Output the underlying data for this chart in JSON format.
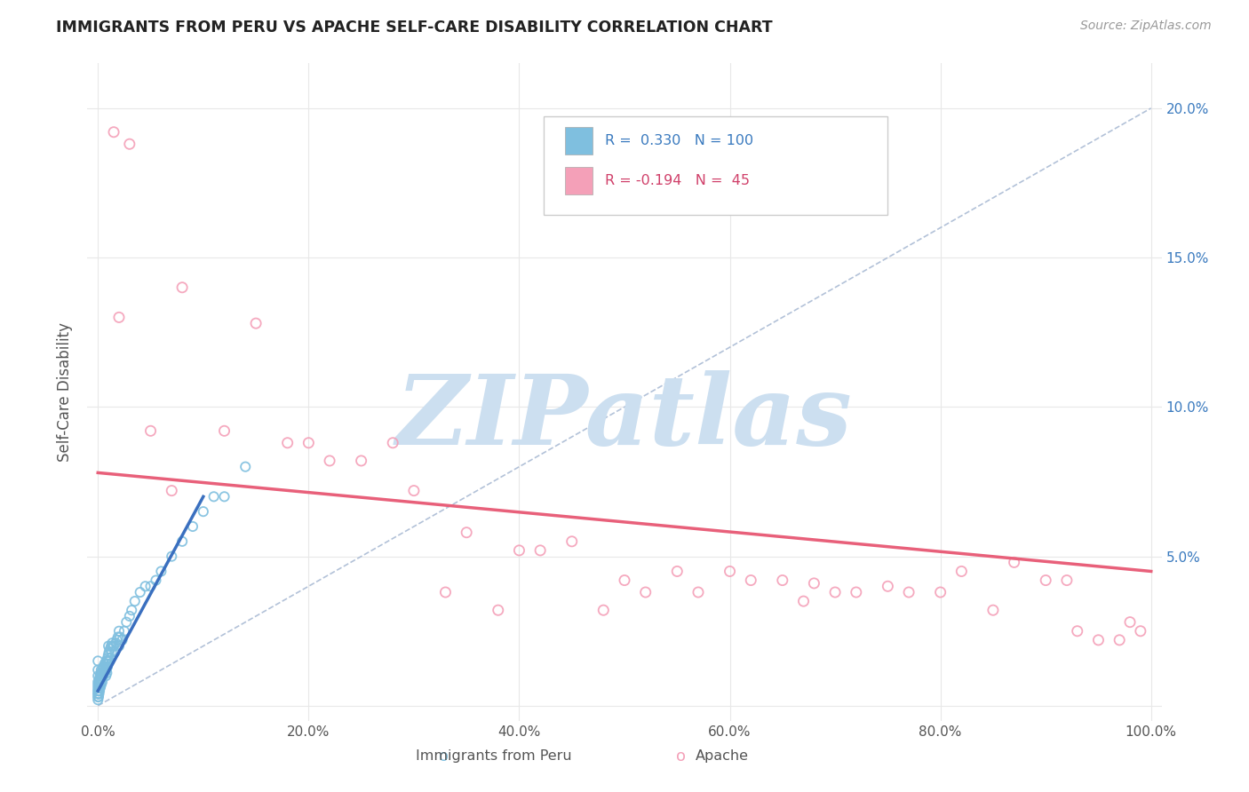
{
  "title": "IMMIGRANTS FROM PERU VS APACHE SELF-CARE DISABILITY CORRELATION CHART",
  "source": "Source: ZipAtlas.com",
  "ylabel": "Self-Care Disability",
  "legend_label1": "Immigrants from Peru",
  "legend_label2": "Apache",
  "R1": 0.33,
  "N1": 100,
  "R2": -0.194,
  "N2": 45,
  "xlim": [
    -1.0,
    101.0
  ],
  "ylim": [
    -0.5,
    21.5
  ],
  "xticks": [
    0.0,
    20.0,
    40.0,
    60.0,
    80.0,
    100.0
  ],
  "yticks": [
    0.0,
    5.0,
    10.0,
    15.0,
    20.0
  ],
  "xticklabels": [
    "0.0%",
    "20.0%",
    "40.0%",
    "60.0%",
    "80.0%",
    "100.0%"
  ],
  "yticklabels_right": [
    "",
    "5.0%",
    "10.0%",
    "15.0%",
    "20.0%"
  ],
  "color_blue": "#7fbfdf",
  "color_pink": "#f4a0b8",
  "color_trendline_blue": "#3a6fbf",
  "color_trendline_pink": "#e8607a",
  "color_ref_line": "#aabbd4",
  "watermark_color": "#ccdff0",
  "watermark_text": "ZIPatlas",
  "background_color": "#ffffff",
  "grid_color": "#e8e8e8",
  "title_color": "#222222",
  "axis_label_color": "#555555",
  "tick_color_right": "#3a7abf",
  "blue_scatter_x": [
    0.0,
    0.0,
    0.0,
    0.0,
    0.0,
    0.0,
    0.0,
    0.0,
    0.0,
    0.0,
    0.05,
    0.05,
    0.08,
    0.1,
    0.1,
    0.12,
    0.15,
    0.15,
    0.18,
    0.2,
    0.2,
    0.25,
    0.3,
    0.3,
    0.35,
    0.4,
    0.4,
    0.45,
    0.5,
    0.5,
    0.6,
    0.65,
    0.7,
    0.75,
    0.8,
    0.85,
    0.9,
    0.95,
    1.0,
    1.0,
    1.1,
    1.2,
    1.3,
    1.4,
    1.5,
    1.6,
    1.7,
    1.8,
    1.9,
    2.0,
    2.0,
    2.1,
    2.3,
    2.5,
    2.7,
    3.0,
    3.2,
    3.5,
    4.0,
    4.5,
    5.0,
    5.5,
    6.0,
    7.0,
    8.0,
    9.0,
    10.0,
    11.0,
    12.0,
    14.0,
    0.02,
    0.03,
    0.04,
    0.06,
    0.07,
    0.09,
    0.11,
    0.13,
    0.16,
    0.19,
    0.22,
    0.26,
    0.28,
    0.32,
    0.38,
    0.42,
    0.48,
    0.55,
    0.62,
    0.68,
    0.72,
    0.78,
    0.82,
    0.88,
    0.92,
    0.98,
    1.05,
    1.15,
    1.25,
    1.35
  ],
  "blue_scatter_y": [
    0.2,
    0.3,
    0.4,
    0.5,
    0.6,
    0.7,
    0.8,
    1.0,
    1.2,
    1.5,
    0.3,
    0.5,
    0.7,
    0.4,
    0.8,
    0.6,
    0.5,
    0.9,
    0.7,
    0.6,
    1.0,
    0.8,
    0.7,
    1.2,
    0.9,
    0.8,
    1.1,
    1.0,
    1.0,
    1.3,
    1.1,
    1.2,
    1.3,
    1.0,
    1.2,
    1.1,
    1.3,
    1.4,
    1.5,
    2.0,
    1.5,
    1.6,
    1.8,
    2.0,
    2.0,
    1.8,
    2.1,
    2.2,
    2.3,
    2.5,
    2.0,
    2.3,
    2.2,
    2.5,
    2.8,
    3.0,
    3.2,
    3.5,
    3.8,
    4.0,
    4.0,
    4.2,
    4.5,
    5.0,
    5.5,
    6.0,
    6.5,
    7.0,
    7.0,
    8.0,
    0.4,
    0.3,
    0.5,
    0.4,
    0.6,
    0.5,
    0.7,
    0.8,
    0.9,
    0.6,
    0.8,
    0.9,
    1.0,
    1.1,
    1.0,
    1.2,
    1.1,
    1.3,
    1.4,
    1.2,
    1.3,
    1.5,
    1.4,
    1.5,
    1.6,
    1.7,
    1.8,
    1.9,
    2.0,
    2.1
  ],
  "pink_scatter_x": [
    1.5,
    3.0,
    5.0,
    8.0,
    15.0,
    18.0,
    25.0,
    30.0,
    35.0,
    40.0,
    45.0,
    50.0,
    55.0,
    60.0,
    65.0,
    68.0,
    70.0,
    72.0,
    75.0,
    77.0,
    80.0,
    82.0,
    85.0,
    87.0,
    90.0,
    92.0,
    95.0,
    97.0,
    98.0,
    99.0,
    2.0,
    7.0,
    12.0,
    20.0,
    22.0,
    28.0,
    33.0,
    38.0,
    42.0,
    48.0,
    52.0,
    57.0,
    62.0,
    67.0,
    93.0
  ],
  "pink_scatter_y": [
    19.2,
    18.8,
    9.2,
    14.0,
    12.8,
    8.8,
    8.2,
    7.2,
    5.8,
    5.2,
    5.5,
    4.2,
    4.5,
    4.5,
    4.2,
    4.1,
    3.8,
    3.8,
    4.0,
    3.8,
    3.8,
    4.5,
    3.2,
    4.8,
    4.2,
    4.2,
    2.2,
    2.2,
    2.8,
    2.5,
    13.0,
    7.2,
    9.2,
    8.8,
    8.2,
    8.8,
    3.8,
    3.2,
    5.2,
    3.2,
    3.8,
    3.8,
    4.2,
    3.5,
    2.5
  ],
  "pink_trendline_x0": 0.0,
  "pink_trendline_x1": 100.0,
  "pink_trendline_y0": 7.8,
  "pink_trendline_y1": 4.5,
  "blue_trendline_x0": 0.0,
  "blue_trendline_x1": 10.0,
  "blue_trendline_y0": 0.5,
  "blue_trendline_y1": 7.0
}
